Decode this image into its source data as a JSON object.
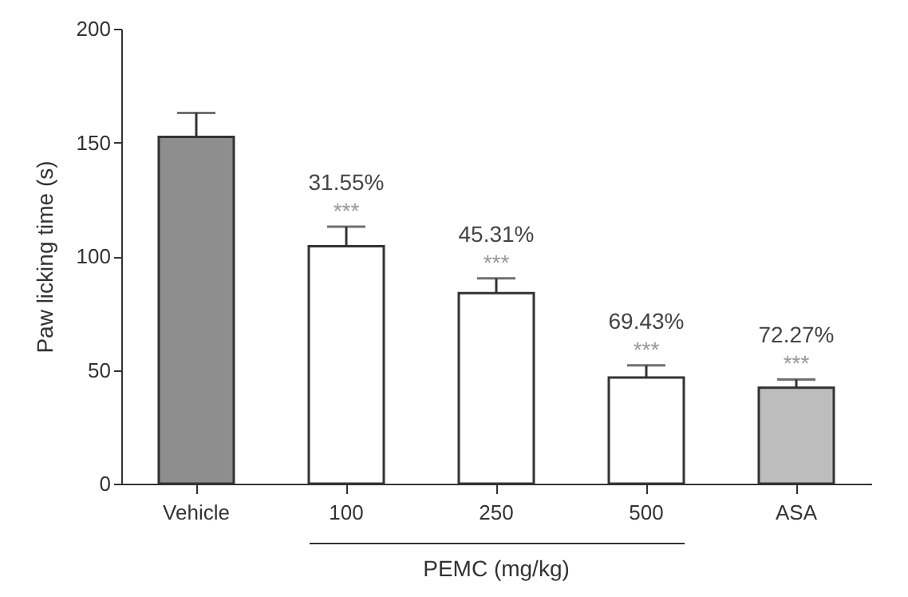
{
  "chart_data": {
    "type": "bar",
    "ylabel": "Paw licking time (s)",
    "xlabel": "PEMC (mg/kg)",
    "categories": [
      "Vehicle",
      "100",
      "250",
      "500",
      "ASA"
    ],
    "values": [
      152.5,
      104.4,
      83.8,
      46.7,
      42.2
    ],
    "colors": [
      "#8e8e8e",
      "#ffffff",
      "#ffffff",
      "#ffffff",
      "#bdbdbd"
    ],
    "errors": [
      [
        152.5,
        163
      ],
      [
        104.4,
        113
      ],
      [
        83.8,
        90.3
      ],
      [
        46.7,
        52
      ],
      [
        42.2,
        45.8
      ]
    ],
    "ylim": [
      0,
      200
    ],
    "yticks": [
      0,
      50,
      100,
      150,
      200
    ],
    "grid": false,
    "annotations": [
      "31.55%",
      "***",
      "45.31%",
      "***",
      "69.43%",
      "***",
      "72.27%",
      "***"
    ]
  }
}
